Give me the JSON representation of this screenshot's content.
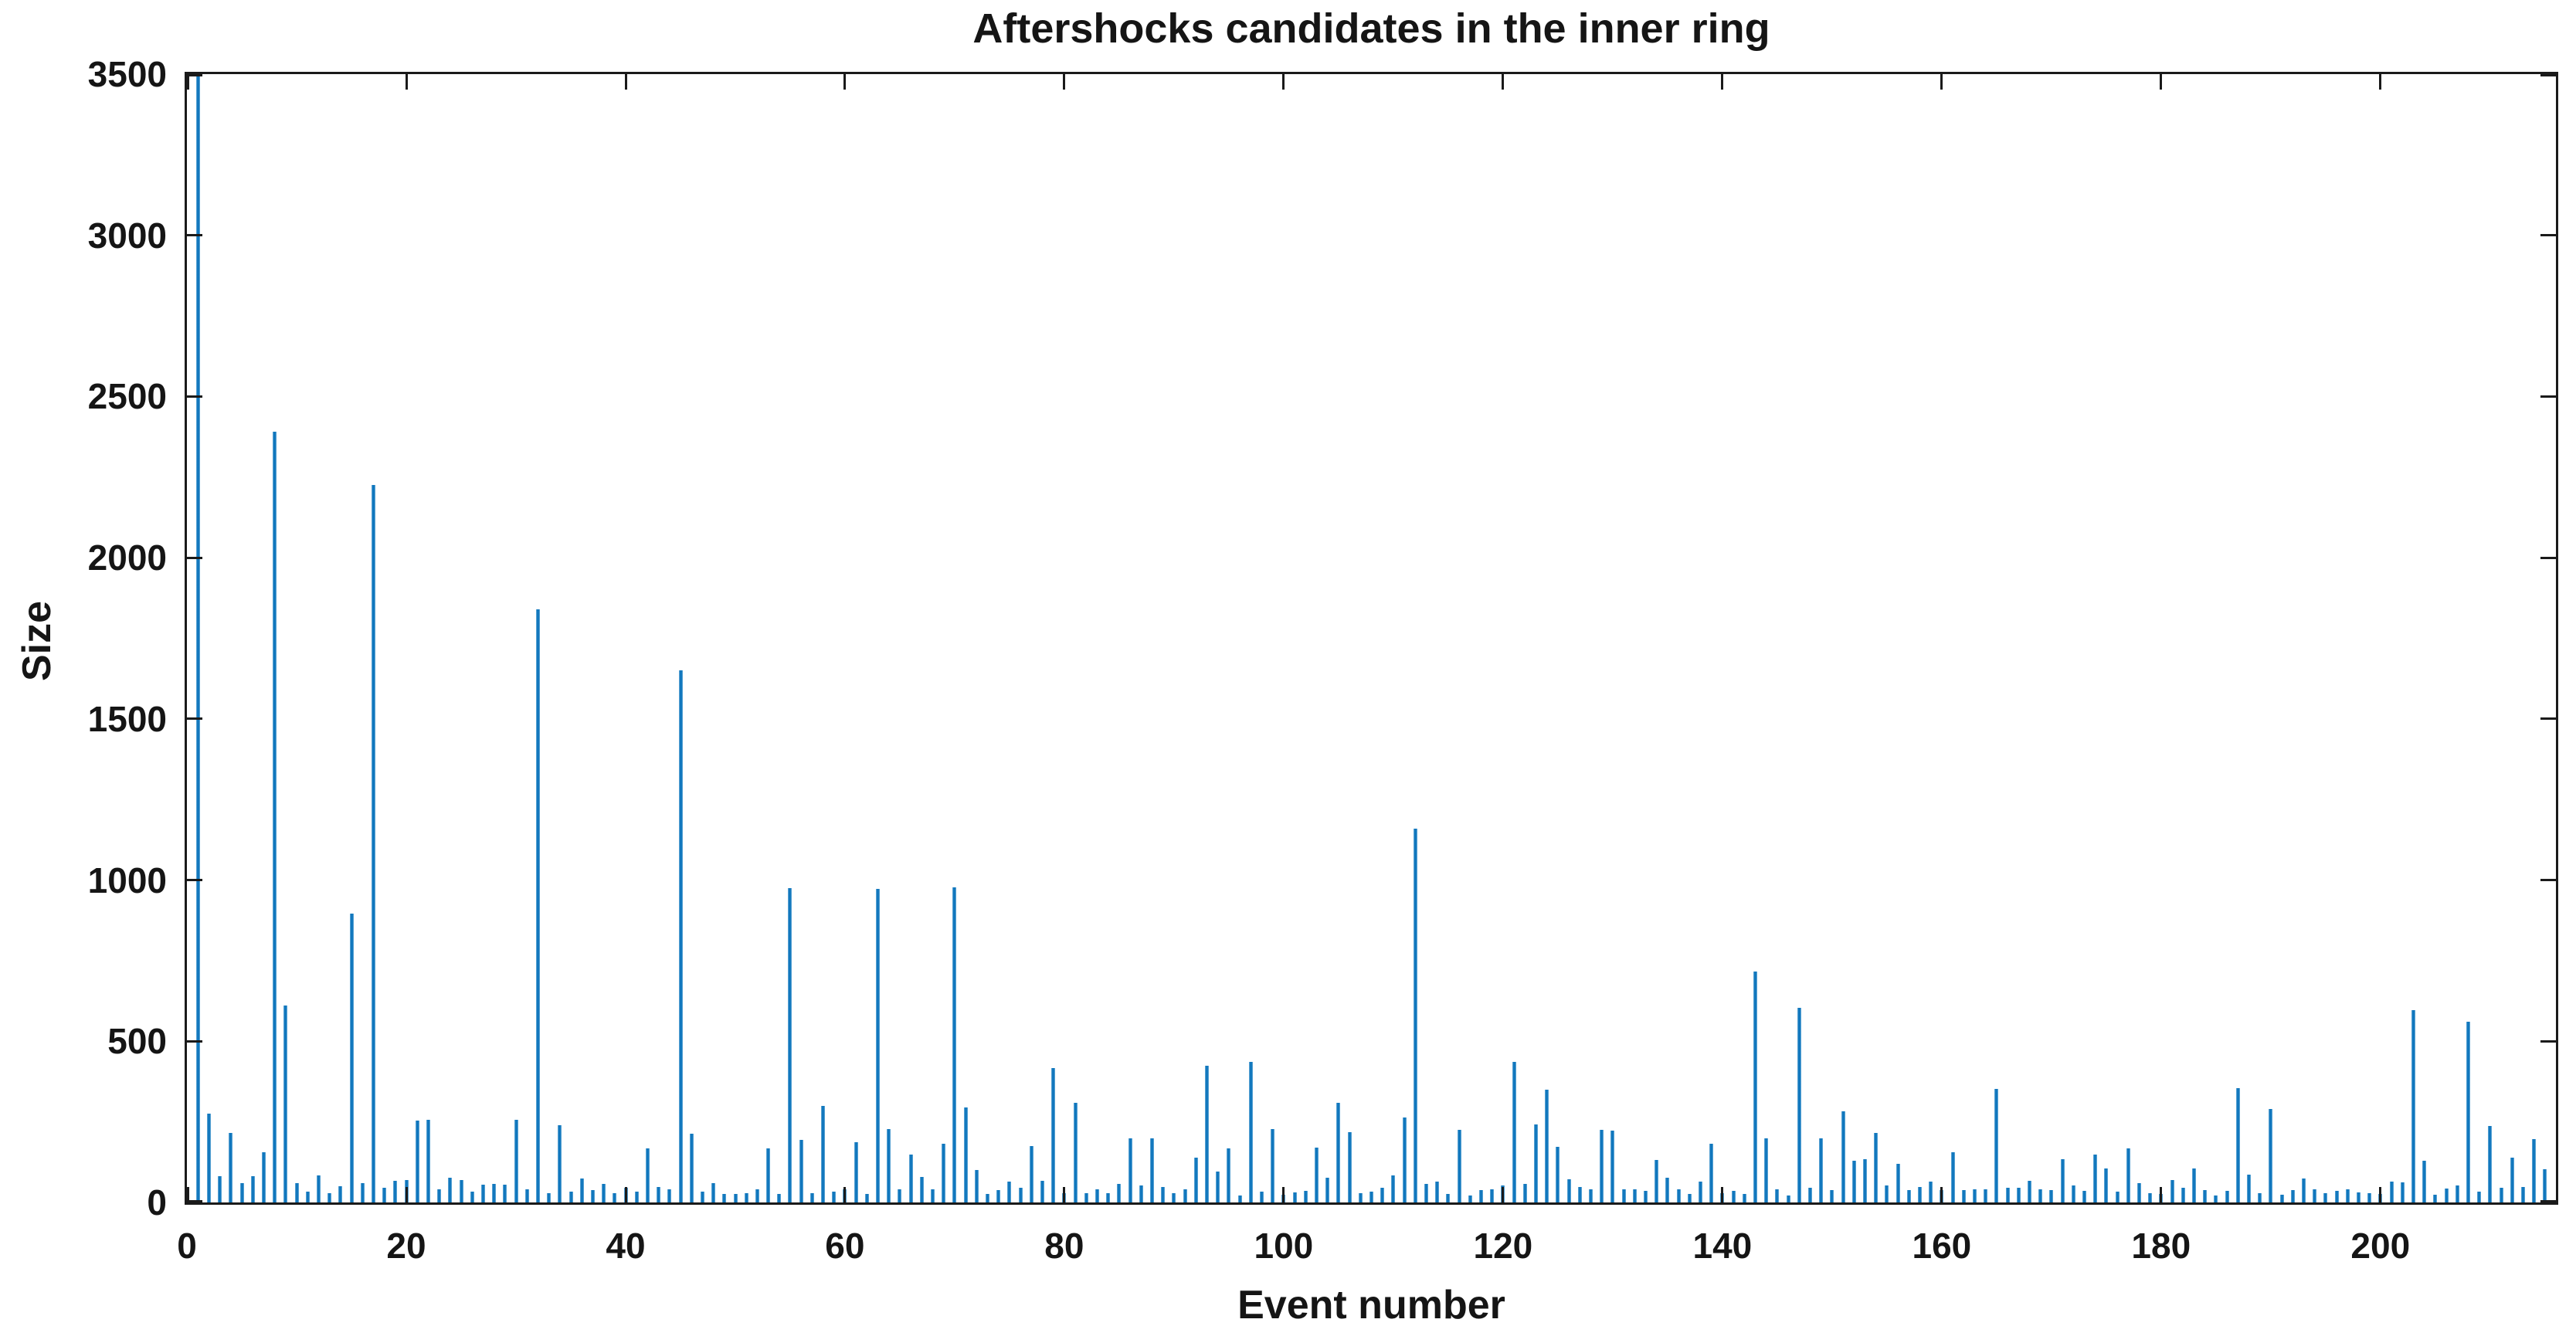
{
  "figure": {
    "title": "Aftershocks candidates in the inner ring",
    "xlabel": "Event number",
    "ylabel": "Size"
  },
  "colors": {
    "bar_fill": "#0072BD",
    "bar_edge_light": "#6FB0DA",
    "axis": "#1a1a1a",
    "text": "#151515",
    "background": "#ffffff"
  },
  "chart_data": {
    "type": "bar",
    "title": "Aftershocks candidates in the inner ring",
    "xlabel": "Event number",
    "ylabel": "Size",
    "xlim": [
      0,
      216
    ],
    "ylim": [
      0,
      3500
    ],
    "x_ticks": [
      0,
      20,
      40,
      60,
      80,
      100,
      120,
      140,
      160,
      180,
      200
    ],
    "y_ticks": [
      0,
      500,
      1000,
      1500,
      2000,
      2500,
      3000,
      3500
    ],
    "grid": false,
    "legend": null,
    "x_start": 1,
    "clipped_at_top_events": [
      1
    ],
    "values": [
      3500,
      275,
      82,
      215,
      61,
      82,
      155,
      2390,
      612,
      60,
      33,
      83,
      28,
      51,
      895,
      61,
      2225,
      45,
      68,
      69,
      253,
      256,
      41,
      77,
      69,
      33,
      56,
      58,
      55,
      257,
      41,
      1840,
      29,
      239,
      34,
      74,
      38,
      58,
      30,
      45,
      33,
      169,
      48,
      41,
      1650,
      213,
      33,
      60,
      26,
      26,
      30,
      42,
      169,
      26,
      976,
      193,
      30,
      300,
      33,
      40,
      188,
      26,
      972,
      227,
      42,
      148,
      78,
      40,
      183,
      978,
      294,
      100,
      26,
      38,
      64,
      45,
      175,
      66,
      416,
      29,
      310,
      29,
      40,
      29,
      58,
      199,
      52,
      199,
      48,
      29,
      40,
      139,
      425,
      95,
      169,
      22,
      437,
      34,
      227,
      24,
      32,
      37,
      171,
      77,
      308,
      219,
      29,
      34,
      45,
      83,
      264,
      1160,
      58,
      64,
      26,
      225,
      21,
      38,
      42,
      53,
      437,
      58,
      241,
      350,
      173,
      72,
      48,
      41,
      225,
      223,
      42,
      40,
      37,
      132,
      76,
      42,
      26,
      65,
      183,
      30,
      37,
      26,
      716,
      199,
      42,
      21,
      603,
      45,
      199,
      38,
      283,
      130,
      134,
      215,
      52,
      119,
      38,
      48,
      64,
      38,
      157,
      38,
      41,
      41,
      352,
      45,
      46,
      66,
      41,
      38,
      134,
      52,
      37,
      149,
      106,
      33,
      169,
      60,
      29,
      26,
      70,
      46,
      106,
      38,
      22,
      37,
      355,
      87,
      29,
      291,
      24,
      38,
      74,
      41,
      30,
      37,
      41,
      32,
      29,
      26,
      65,
      62,
      596,
      130,
      25,
      44,
      54,
      560,
      33,
      238,
      46,
      138,
      48,
      197,
      103
    ]
  }
}
